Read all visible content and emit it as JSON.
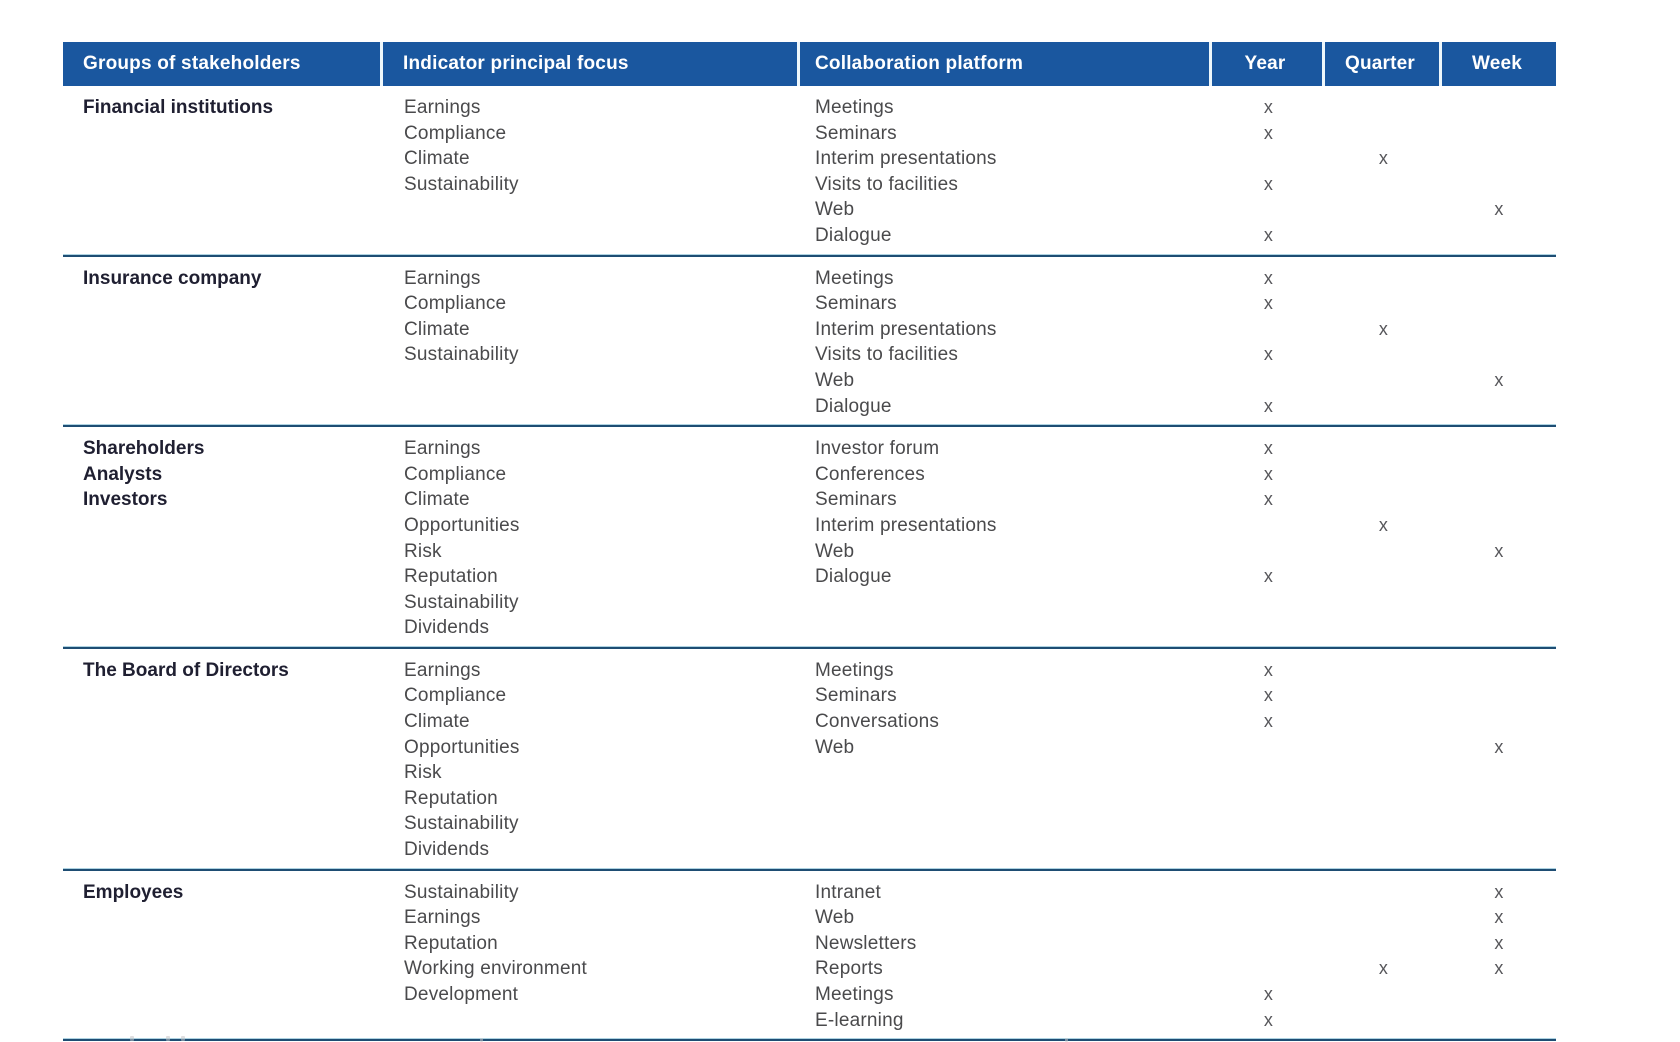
{
  "table": {
    "columns": [
      {
        "label": "Groups of stakeholders"
      },
      {
        "label": "Indicator principal focus"
      },
      {
        "label": "Collaboration platform"
      },
      {
        "label": "Year"
      },
      {
        "label": "Quarter"
      },
      {
        "label": "Week"
      }
    ],
    "mark_symbol": "x",
    "rows": [
      {
        "stakeholders": [
          "Financial institutions"
        ],
        "indicators": [
          "Earnings",
          "Compliance",
          "Climate",
          "Sustainability"
        ],
        "platforms": [
          "Meetings",
          "Seminars",
          "Interim presentations",
          "Visits to facilities",
          "Web",
          "Dialogue"
        ],
        "year": [
          "x",
          "x",
          "",
          "x",
          "",
          "x"
        ],
        "quarter": [
          "",
          "",
          "x",
          "",
          "",
          ""
        ],
        "week": [
          "",
          "",
          "",
          "",
          "x",
          ""
        ]
      },
      {
        "stakeholders": [
          "Insurance company"
        ],
        "indicators": [
          "Earnings",
          "Compliance",
          "Climate",
          "Sustainability"
        ],
        "platforms": [
          "Meetings",
          "Seminars",
          "Interim presentations",
          "Visits to facilities",
          "Web",
          "Dialogue"
        ],
        "year": [
          "x",
          "x",
          "",
          "x",
          "",
          "x"
        ],
        "quarter": [
          "",
          "",
          "x",
          "",
          "",
          ""
        ],
        "week": [
          "",
          "",
          "",
          "",
          "x",
          ""
        ]
      },
      {
        "stakeholders": [
          "Shareholders",
          "Analysts",
          "Investors"
        ],
        "indicators": [
          "Earnings",
          "Compliance",
          "Climate",
          "Opportunities",
          "Risk",
          "Reputation",
          "Sustainability",
          "Dividends"
        ],
        "platforms": [
          "Investor forum",
          "Conferences",
          "Seminars",
          "Interim presentations",
          "Web",
          "Dialogue"
        ],
        "year": [
          "x",
          "x",
          "x",
          "",
          "",
          "x"
        ],
        "quarter": [
          "",
          "",
          "",
          "x",
          "",
          ""
        ],
        "week": [
          "",
          "",
          "",
          "",
          "x",
          ""
        ]
      },
      {
        "stakeholders": [
          "The Board of Directors"
        ],
        "indicators": [
          "Earnings",
          "Compliance",
          "Climate",
          "Opportunities",
          "Risk",
          "Reputation",
          "Sustainability",
          "Dividends"
        ],
        "platforms": [
          "Meetings",
          "Seminars",
          "Conversations",
          "Web"
        ],
        "year": [
          "x",
          "x",
          "x",
          ""
        ],
        "quarter": [
          "",
          "",
          "",
          ""
        ],
        "week": [
          "",
          "",
          "",
          "x"
        ]
      },
      {
        "stakeholders": [
          "Employees"
        ],
        "indicators": [
          "Sustainability",
          "Earnings",
          "Reputation",
          "Working environment",
          "Development"
        ],
        "platforms": [
          "Intranet",
          "Web",
          "Newsletters",
          "Reports",
          "Meetings",
          "E-learning"
        ],
        "year": [
          "",
          "",
          "",
          "",
          "x",
          "x"
        ],
        "quarter": [
          "",
          "",
          "",
          "x",
          "",
          ""
        ],
        "week": [
          "x",
          "x",
          "x",
          "x",
          "",
          ""
        ]
      }
    ]
  },
  "colors": {
    "header_blue": "#1a579f",
    "divider_dark": "#1e4d73",
    "divider_light": "#aed3e2",
    "body_text": "#4a4a4c",
    "bold_text": "#1f1f31",
    "mark_gray": "#57575b"
  }
}
